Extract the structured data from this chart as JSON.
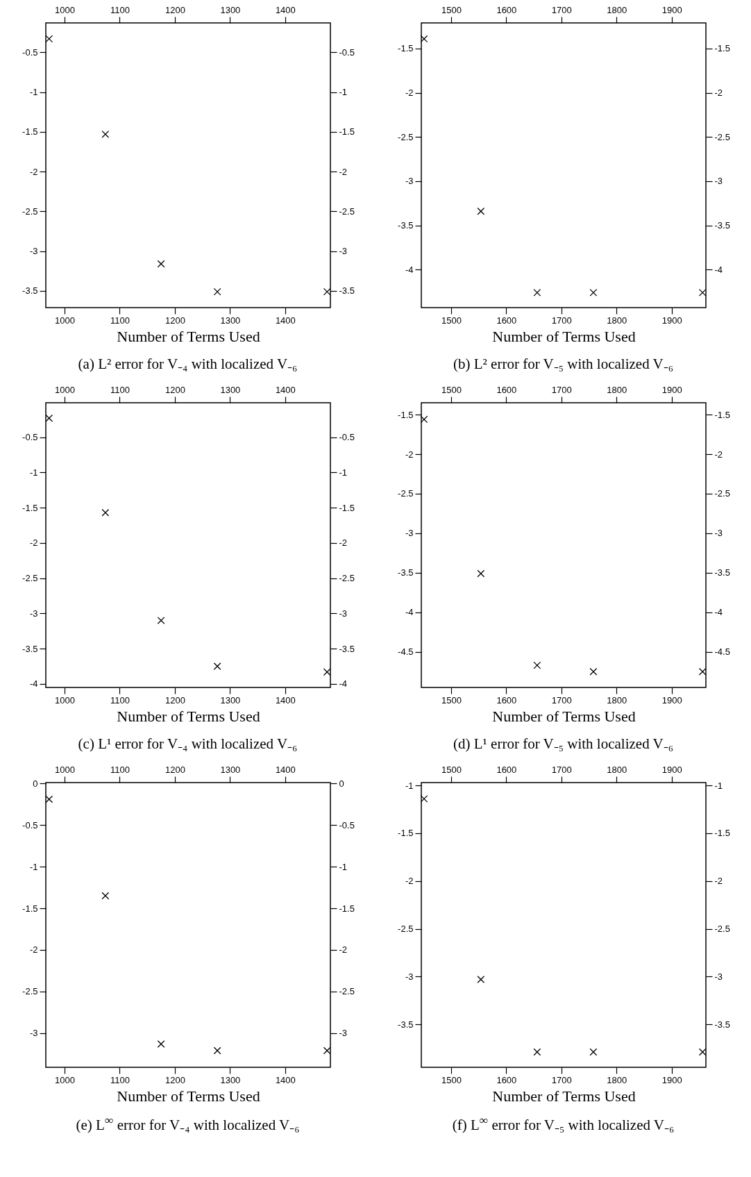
{
  "chart_data": [
    {
      "type": "scatter",
      "title": "(a) L² error for V₋₄ with localized V₋₆",
      "xlabel": "Number of Terms Used",
      "x": [
        972,
        1074,
        1175,
        1277,
        1476
      ],
      "series": [
        {
          "color": "#000000",
          "values": [
            -0.33,
            -1.53,
            -3.16,
            -3.51,
            -3.51
          ]
        }
      ],
      "xlim": [
        966,
        1482
      ],
      "xticks": [
        1000,
        1100,
        1200,
        1300,
        1400
      ],
      "x2lim": [
        966,
        1482
      ],
      "x2ticks": [
        1000,
        1100,
        1200,
        1300,
        1400
      ],
      "ylim": [
        -3.71,
        -0.13
      ],
      "yticks": [
        -3.5,
        -3,
        -2.5,
        -2,
        -1.5,
        -1,
        -0.5
      ],
      "y2lim": [
        -3.71,
        -0.13
      ],
      "y2ticks": [
        -3.5,
        -3,
        -2.5,
        -2,
        -1.5,
        -1,
        -0.5
      ],
      "marker": "cross"
    },
    {
      "type": "scatter",
      "title": "(b) L² error for V₋₅ with localized V₋₆",
      "xlabel": "Number of Terms Used",
      "x": [
        1451,
        1554,
        1656,
        1758,
        1956
      ],
      "series": [
        {
          "color": "#000000",
          "values": [
            -1.39,
            -3.34,
            -4.26,
            -4.26,
            -4.26
          ]
        }
      ],
      "xlim": [
        1446,
        1962
      ],
      "xticks": [
        1500,
        1600,
        1700,
        1800,
        1900
      ],
      "x2lim": [
        1446,
        1962
      ],
      "x2ticks": [
        1500,
        1600,
        1700,
        1800,
        1900
      ],
      "ylim": [
        -4.43,
        -1.21
      ],
      "yticks": [
        -4,
        -3.5,
        -3,
        -2.5,
        -2,
        -1.5
      ],
      "y2lim": [
        -4.43,
        -1.21
      ],
      "y2ticks": [
        -4,
        -3.5,
        -3,
        -2.5,
        -2,
        -1.5
      ],
      "marker": "cross"
    },
    {
      "type": "scatter",
      "title": "(c) L¹ error for V₋₄ with localized V₋₆",
      "xlabel": "Number of Terms Used",
      "x": [
        972,
        1074,
        1175,
        1277,
        1476
      ],
      "series": [
        {
          "color": "#000000",
          "values": [
            -0.23,
            -1.57,
            -3.1,
            -3.75,
            -3.83
          ]
        }
      ],
      "xlim": [
        966,
        1482
      ],
      "xticks": [
        1000,
        1100,
        1200,
        1300,
        1400
      ],
      "x2lim": [
        966,
        1482
      ],
      "x2ticks": [
        1000,
        1100,
        1200,
        1300,
        1400
      ],
      "ylim": [
        -4.05,
        -0.01
      ],
      "yticks": [
        -4,
        -3.5,
        -3,
        -2.5,
        -2,
        -1.5,
        -1,
        -0.5
      ],
      "y2lim": [
        -4.05,
        -0.01
      ],
      "y2ticks": [
        -4,
        -3.5,
        -3,
        -2.5,
        -2,
        -1.5,
        -1,
        -0.5
      ],
      "marker": "cross"
    },
    {
      "type": "scatter",
      "title": "(d) L¹ error for V₋₅ with localized V₋₆",
      "xlabel": "Number of Terms Used",
      "x": [
        1451,
        1554,
        1656,
        1758,
        1956
      ],
      "series": [
        {
          "color": "#000000",
          "values": [
            -1.56,
            -3.51,
            -4.67,
            -4.75,
            -4.75
          ]
        }
      ],
      "xlim": [
        1446,
        1962
      ],
      "xticks": [
        1500,
        1600,
        1700,
        1800,
        1900
      ],
      "x2lim": [
        1446,
        1962
      ],
      "x2ticks": [
        1500,
        1600,
        1700,
        1800,
        1900
      ],
      "ylim": [
        -4.95,
        -1.35
      ],
      "yticks": [
        -4.5,
        -4,
        -3.5,
        -3,
        -2.5,
        -2,
        -1.5
      ],
      "y2lim": [
        -4.95,
        -1.35
      ],
      "y2ticks": [
        -4.5,
        -4,
        -3.5,
        -3,
        -2.5,
        -2,
        -1.5
      ],
      "marker": "cross"
    },
    {
      "type": "scatter",
      "title": "(e) L$^{∞}$ error for V₋₄ with localized V₋₆",
      "xlabel": "Number of Terms Used",
      "x": [
        972,
        1074,
        1175,
        1277,
        1476
      ],
      "series": [
        {
          "color": "#000000",
          "values": [
            -0.19,
            -1.35,
            -3.13,
            -3.21,
            -3.21
          ]
        }
      ],
      "xlim": [
        966,
        1482
      ],
      "xticks": [
        1000,
        1100,
        1200,
        1300,
        1400
      ],
      "x2lim": [
        966,
        1482
      ],
      "x2ticks": [
        1000,
        1100,
        1200,
        1300,
        1400
      ],
      "ylim": [
        -3.41,
        0.01
      ],
      "yticks": [
        -3,
        -2.5,
        -2,
        -1.5,
        -1,
        -0.5,
        0
      ],
      "y2lim": [
        -3.41,
        0.01
      ],
      "y2ticks": [
        -3,
        -2.5,
        -2,
        -1.5,
        -1,
        -0.5,
        0
      ],
      "marker": "cross"
    },
    {
      "type": "scatter",
      "title": "(f) L$^{∞}$ error for V₋₅ with localized V₋₆",
      "xlabel": "Number of Terms Used",
      "x": [
        1451,
        1554,
        1656,
        1758,
        1956
      ],
      "series": [
        {
          "color": "#000000",
          "values": [
            -1.14,
            -3.03,
            -3.79,
            -3.79,
            -3.79
          ]
        }
      ],
      "xlim": [
        1446,
        1962
      ],
      "xticks": [
        1500,
        1600,
        1700,
        1800,
        1900
      ],
      "x2lim": [
        1446,
        1962
      ],
      "x2ticks": [
        1500,
        1600,
        1700,
        1800,
        1900
      ],
      "ylim": [
        -3.95,
        -0.97
      ],
      "yticks": [
        -3.5,
        -3,
        -2.5,
        -2,
        -1.5,
        -1
      ],
      "y2lim": [
        -3.95,
        -0.97
      ],
      "y2ticks": [
        -3.5,
        -3,
        -2.5,
        -2,
        -1.5,
        -1
      ],
      "marker": "cross"
    }
  ]
}
